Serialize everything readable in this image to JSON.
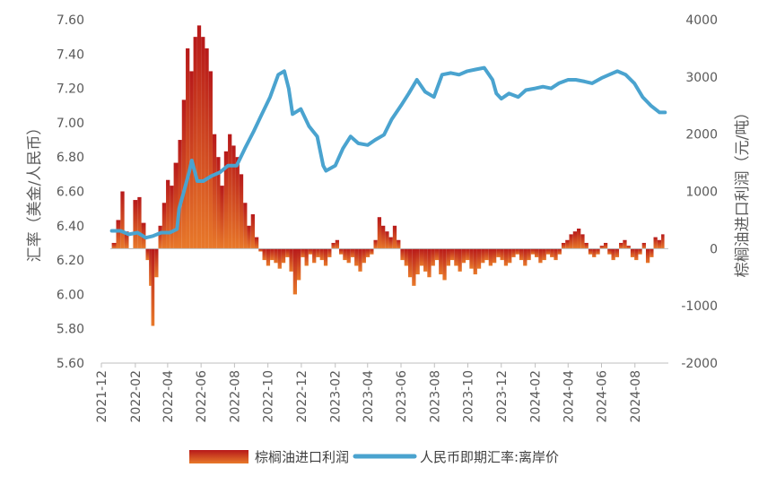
{
  "chart_data": {
    "type": "bar+line",
    "left_axis": {
      "label": "汇率（美金/人民币）",
      "ylim": [
        5.6,
        7.6
      ],
      "ticks": [
        "5.60",
        "5.80",
        "6.00",
        "6.20",
        "6.40",
        "6.60",
        "6.80",
        "7.00",
        "7.20",
        "7.40",
        "7.60"
      ]
    },
    "right_axis": {
      "label": "棕榈油进口利润（元/吨）",
      "ylim": [
        -2000,
        4000
      ],
      "ticks": [
        "-2000",
        "-1000",
        "0",
        "1000",
        "2000",
        "3000",
        "4000"
      ]
    },
    "x_axis": {
      "range": [
        "2021-12-01",
        "2024-10-01"
      ],
      "ticks": [
        "2021-12",
        "2022-02",
        "2022-04",
        "2022-06",
        "2022-08",
        "2022-10",
        "2022-12",
        "2023-02",
        "2023-04",
        "2023-06",
        "2023-08",
        "2023-10",
        "2023-12",
        "2024-02",
        "2024-04",
        "2024-06",
        "2024-08"
      ]
    },
    "legend": {
      "position": "bottom"
    },
    "series": [
      {
        "name": "棕榈油进口利润",
        "type": "bar",
        "axis": "right",
        "color": "#c0392b",
        "points": [
          [
            "2021-12-20",
            100
          ],
          [
            "2021-12-28",
            500
          ],
          [
            "2022-01-05",
            1000
          ],
          [
            "2022-01-12",
            300
          ],
          [
            "2022-01-20",
            0
          ],
          [
            "2022-01-28",
            850
          ],
          [
            "2022-02-05",
            900
          ],
          [
            "2022-02-12",
            450
          ],
          [
            "2022-02-20",
            -200
          ],
          [
            "2022-02-26",
            -650
          ],
          [
            "2022-03-02",
            -1350
          ],
          [
            "2022-03-08",
            -500
          ],
          [
            "2022-03-15",
            400
          ],
          [
            "2022-03-22",
            800
          ],
          [
            "2022-03-29",
            1200
          ],
          [
            "2022-04-05",
            1100
          ],
          [
            "2022-04-12",
            1500
          ],
          [
            "2022-04-20",
            1900
          ],
          [
            "2022-04-27",
            2600
          ],
          [
            "2022-05-04",
            3500
          ],
          [
            "2022-05-11",
            3100
          ],
          [
            "2022-05-18",
            3700
          ],
          [
            "2022-05-25",
            3900
          ],
          [
            "2022-06-01",
            3700
          ],
          [
            "2022-06-08",
            3500
          ],
          [
            "2022-06-15",
            3100
          ],
          [
            "2022-06-22",
            2000
          ],
          [
            "2022-06-29",
            1600
          ],
          [
            "2022-07-06",
            1100
          ],
          [
            "2022-07-13",
            1700
          ],
          [
            "2022-07-20",
            2000
          ],
          [
            "2022-07-27",
            1800
          ],
          [
            "2022-08-03",
            1600
          ],
          [
            "2022-08-10",
            1300
          ],
          [
            "2022-08-17",
            800
          ],
          [
            "2022-08-24",
            400
          ],
          [
            "2022-08-31",
            600
          ],
          [
            "2022-09-07",
            200
          ],
          [
            "2022-09-14",
            -50
          ],
          [
            "2022-09-21",
            -200
          ],
          [
            "2022-09-28",
            -300
          ],
          [
            "2022-10-05",
            -200
          ],
          [
            "2022-10-12",
            -250
          ],
          [
            "2022-10-19",
            -350
          ],
          [
            "2022-10-26",
            -250
          ],
          [
            "2022-11-02",
            -150
          ],
          [
            "2022-11-09",
            -400
          ],
          [
            "2022-11-16",
            -800
          ],
          [
            "2022-11-23",
            -550
          ],
          [
            "2022-11-30",
            -150
          ],
          [
            "2022-12-07",
            -300
          ],
          [
            "2022-12-14",
            -100
          ],
          [
            "2022-12-21",
            -250
          ],
          [
            "2022-12-28",
            -150
          ],
          [
            "2023-01-04",
            -200
          ],
          [
            "2023-01-11",
            -300
          ],
          [
            "2023-01-18",
            -150
          ],
          [
            "2023-01-25",
            100
          ],
          [
            "2023-02-01",
            150
          ],
          [
            "2023-02-08",
            -100
          ],
          [
            "2023-02-15",
            -200
          ],
          [
            "2023-02-22",
            -250
          ],
          [
            "2023-03-01",
            -150
          ],
          [
            "2023-03-08",
            -300
          ],
          [
            "2023-03-15",
            -400
          ],
          [
            "2023-03-22",
            -250
          ],
          [
            "2023-03-29",
            -150
          ],
          [
            "2023-04-05",
            -100
          ],
          [
            "2023-04-12",
            150
          ],
          [
            "2023-04-19",
            550
          ],
          [
            "2023-04-26",
            400
          ],
          [
            "2023-05-03",
            300
          ],
          [
            "2023-05-10",
            200
          ],
          [
            "2023-05-17",
            400
          ],
          [
            "2023-05-24",
            150
          ],
          [
            "2023-05-31",
            -200
          ],
          [
            "2023-06-07",
            -300
          ],
          [
            "2023-06-14",
            -500
          ],
          [
            "2023-06-21",
            -650
          ],
          [
            "2023-06-28",
            -450
          ],
          [
            "2023-07-05",
            -300
          ],
          [
            "2023-07-12",
            -400
          ],
          [
            "2023-07-19",
            -500
          ],
          [
            "2023-07-26",
            -300
          ],
          [
            "2023-08-02",
            -200
          ],
          [
            "2023-08-09",
            -450
          ],
          [
            "2023-08-16",
            -550
          ],
          [
            "2023-08-23",
            -300
          ],
          [
            "2023-08-30",
            -200
          ],
          [
            "2023-09-06",
            -300
          ],
          [
            "2023-09-13",
            -400
          ],
          [
            "2023-09-20",
            -250
          ],
          [
            "2023-09-27",
            -200
          ],
          [
            "2023-10-04",
            -350
          ],
          [
            "2023-10-11",
            -450
          ],
          [
            "2023-10-18",
            -350
          ],
          [
            "2023-10-25",
            -250
          ],
          [
            "2023-11-01",
            -200
          ],
          [
            "2023-11-08",
            -300
          ],
          [
            "2023-11-15",
            -250
          ],
          [
            "2023-11-22",
            -150
          ],
          [
            "2023-11-29",
            -200
          ],
          [
            "2023-12-06",
            -300
          ],
          [
            "2023-12-13",
            -250
          ],
          [
            "2023-12-20",
            -150
          ],
          [
            "2023-12-27",
            -100
          ],
          [
            "2024-01-03",
            -200
          ],
          [
            "2024-01-10",
            -300
          ],
          [
            "2024-01-17",
            -200
          ],
          [
            "2024-01-24",
            -100
          ],
          [
            "2024-01-31",
            -150
          ],
          [
            "2024-02-07",
            -250
          ],
          [
            "2024-02-14",
            -200
          ],
          [
            "2024-02-21",
            -100
          ],
          [
            "2024-02-28",
            -150
          ],
          [
            "2024-03-06",
            -200
          ],
          [
            "2024-03-13",
            -100
          ],
          [
            "2024-03-20",
            100
          ],
          [
            "2024-03-27",
            150
          ],
          [
            "2024-04-03",
            250
          ],
          [
            "2024-04-10",
            300
          ],
          [
            "2024-04-17",
            350
          ],
          [
            "2024-04-24",
            250
          ],
          [
            "2024-05-01",
            100
          ],
          [
            "2024-05-08",
            -100
          ],
          [
            "2024-05-15",
            -150
          ],
          [
            "2024-05-22",
            -100
          ],
          [
            "2024-05-29",
            50
          ],
          [
            "2024-06-05",
            100
          ],
          [
            "2024-06-12",
            -100
          ],
          [
            "2024-06-19",
            -200
          ],
          [
            "2024-06-26",
            -150
          ],
          [
            "2024-07-03",
            100
          ],
          [
            "2024-07-10",
            150
          ],
          [
            "2024-07-17",
            50
          ],
          [
            "2024-07-24",
            -150
          ],
          [
            "2024-07-31",
            -200
          ],
          [
            "2024-08-07",
            -100
          ],
          [
            "2024-08-14",
            100
          ],
          [
            "2024-08-21",
            -250
          ],
          [
            "2024-08-28",
            -150
          ],
          [
            "2024-09-04",
            200
          ],
          [
            "2024-09-11",
            150
          ],
          [
            "2024-09-18",
            250
          ]
        ]
      },
      {
        "name": "人民币即期汇率:离岸价",
        "type": "line",
        "axis": "left",
        "color": "#4aa3cf",
        "points": [
          [
            "2021-12-20",
            6.37
          ],
          [
            "2022-01-05",
            6.37
          ],
          [
            "2022-01-20",
            6.35
          ],
          [
            "2022-02-05",
            6.36
          ],
          [
            "2022-02-20",
            6.33
          ],
          [
            "2022-03-05",
            6.34
          ],
          [
            "2022-03-20",
            6.36
          ],
          [
            "2022-04-05",
            6.36
          ],
          [
            "2022-04-18",
            6.38
          ],
          [
            "2022-04-22",
            6.5
          ],
          [
            "2022-04-29",
            6.58
          ],
          [
            "2022-05-10",
            6.71
          ],
          [
            "2022-05-15",
            6.78
          ],
          [
            "2022-05-25",
            6.66
          ],
          [
            "2022-06-05",
            6.66
          ],
          [
            "2022-06-20",
            6.69
          ],
          [
            "2022-07-05",
            6.71
          ],
          [
            "2022-07-20",
            6.75
          ],
          [
            "2022-08-05",
            6.75
          ],
          [
            "2022-08-20",
            6.85
          ],
          [
            "2022-09-05",
            6.95
          ],
          [
            "2022-09-20",
            7.05
          ],
          [
            "2022-10-05",
            7.15
          ],
          [
            "2022-10-20",
            7.28
          ],
          [
            "2022-10-31",
            7.3
          ],
          [
            "2022-11-08",
            7.2
          ],
          [
            "2022-11-15",
            7.05
          ],
          [
            "2022-11-30",
            7.08
          ],
          [
            "2022-12-15",
            6.98
          ],
          [
            "2022-12-30",
            6.92
          ],
          [
            "2023-01-10",
            6.75
          ],
          [
            "2023-01-15",
            6.72
          ],
          [
            "2023-02-01",
            6.75
          ],
          [
            "2023-02-15",
            6.85
          ],
          [
            "2023-03-01",
            6.92
          ],
          [
            "2023-03-15",
            6.88
          ],
          [
            "2023-04-01",
            6.87
          ],
          [
            "2023-04-15",
            6.9
          ],
          [
            "2023-05-01",
            6.93
          ],
          [
            "2023-05-15",
            7.02
          ],
          [
            "2023-06-01",
            7.1
          ],
          [
            "2023-06-15",
            7.17
          ],
          [
            "2023-06-30",
            7.25
          ],
          [
            "2023-07-15",
            7.18
          ],
          [
            "2023-07-31",
            7.15
          ],
          [
            "2023-08-15",
            7.28
          ],
          [
            "2023-08-31",
            7.29
          ],
          [
            "2023-09-15",
            7.28
          ],
          [
            "2023-09-30",
            7.3
          ],
          [
            "2023-10-15",
            7.31
          ],
          [
            "2023-10-31",
            7.32
          ],
          [
            "2023-11-15",
            7.25
          ],
          [
            "2023-11-22",
            7.17
          ],
          [
            "2023-12-01",
            7.14
          ],
          [
            "2023-12-15",
            7.17
          ],
          [
            "2024-01-01",
            7.15
          ],
          [
            "2024-01-15",
            7.19
          ],
          [
            "2024-02-01",
            7.2
          ],
          [
            "2024-02-15",
            7.21
          ],
          [
            "2024-03-01",
            7.2
          ],
          [
            "2024-03-15",
            7.23
          ],
          [
            "2024-04-01",
            7.25
          ],
          [
            "2024-04-15",
            7.25
          ],
          [
            "2024-05-01",
            7.24
          ],
          [
            "2024-05-15",
            7.23
          ],
          [
            "2024-06-01",
            7.26
          ],
          [
            "2024-06-15",
            7.28
          ],
          [
            "2024-06-30",
            7.3
          ],
          [
            "2024-07-15",
            7.28
          ],
          [
            "2024-07-31",
            7.23
          ],
          [
            "2024-08-15",
            7.15
          ],
          [
            "2024-08-30",
            7.1
          ],
          [
            "2024-09-15",
            7.06
          ],
          [
            "2024-09-25",
            7.06
          ]
        ]
      }
    ]
  }
}
